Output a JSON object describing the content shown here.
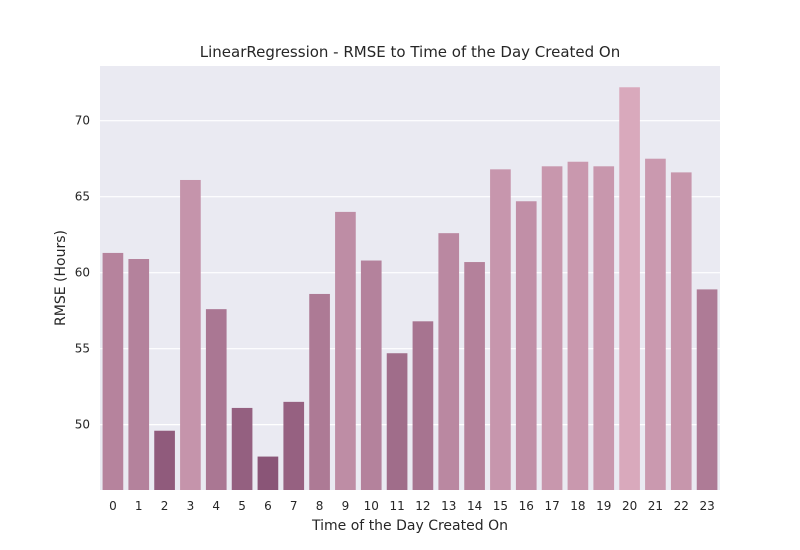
{
  "chart_data": {
    "type": "bar",
    "title": "LinearRegression - RMSE to Time of the Day Created On",
    "xlabel": "Time of the Day Created On",
    "ylabel": "RMSE (Hours)",
    "categories": [
      "0",
      "1",
      "2",
      "3",
      "4",
      "5",
      "6",
      "7",
      "8",
      "9",
      "10",
      "11",
      "12",
      "13",
      "14",
      "15",
      "16",
      "17",
      "18",
      "19",
      "20",
      "21",
      "22",
      "23"
    ],
    "values": [
      61.3,
      60.9,
      49.6,
      66.1,
      57.6,
      51.1,
      47.9,
      51.5,
      58.6,
      64.0,
      60.8,
      54.7,
      56.8,
      62.6,
      60.7,
      66.8,
      64.7,
      67.0,
      67.3,
      67.0,
      72.2,
      67.5,
      66.6,
      58.9
    ],
    "ylim": [
      45.7,
      73.6
    ],
    "yticks": [
      50,
      55,
      60,
      65,
      70
    ],
    "grid": true,
    "colors": {
      "background": "#eaeaf2",
      "grid": "#ffffff",
      "bar_dark": "#8a5577",
      "bar_light": "#d9a9bc"
    }
  }
}
